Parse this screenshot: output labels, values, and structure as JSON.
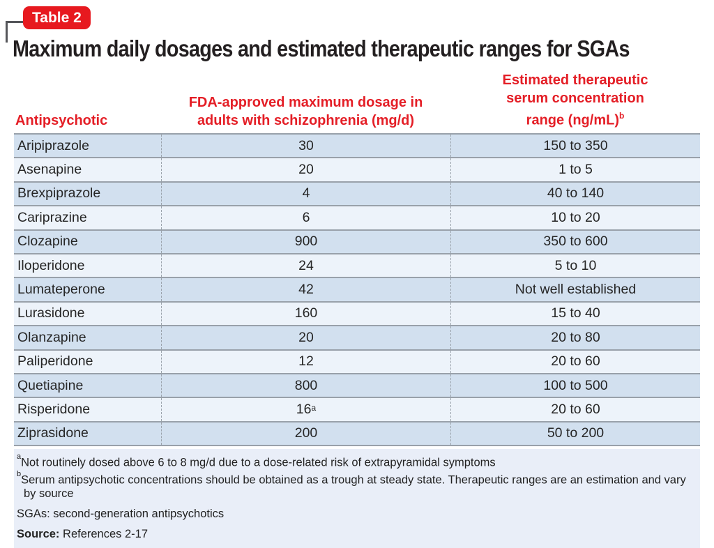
{
  "badge": {
    "label": "Table 2"
  },
  "title": "Maximum daily dosages and estimated therapeutic ranges for SGAs",
  "table": {
    "columns": [
      {
        "label": "Antipsychotic"
      },
      {
        "line1": "FDA-approved maximum dosage in",
        "line2": "adults with schizophrenia (mg/d)"
      },
      {
        "line1": "Estimated therapeutic",
        "line2": "serum concentration",
        "line3": "range (ng/mL)",
        "sup": "b"
      }
    ],
    "rows": [
      {
        "drug": "Aripiprazole",
        "max_dosage": "30",
        "serum_range": "150 to 350"
      },
      {
        "drug": "Asenapine",
        "max_dosage": "20",
        "serum_range": "1 to 5"
      },
      {
        "drug": "Brexpiprazole",
        "max_dosage": "4",
        "serum_range": "40 to 140"
      },
      {
        "drug": "Cariprazine",
        "max_dosage": "6",
        "serum_range": "10 to 20"
      },
      {
        "drug": "Clozapine",
        "max_dosage": "900",
        "serum_range": "350 to 600"
      },
      {
        "drug": "Iloperidone",
        "max_dosage": "24",
        "serum_range": "5 to 10"
      },
      {
        "drug": "Lumateperone",
        "max_dosage": "42",
        "serum_range": "Not well established"
      },
      {
        "drug": "Lurasidone",
        "max_dosage": "160",
        "serum_range": "15 to 40"
      },
      {
        "drug": "Olanzapine",
        "max_dosage": "20",
        "serum_range": "20 to 80"
      },
      {
        "drug": "Paliperidone",
        "max_dosage": "12",
        "serum_range": "20 to 60"
      },
      {
        "drug": "Quetiapine",
        "max_dosage": "800",
        "serum_range": "100 to 500"
      },
      {
        "drug": "Risperidone",
        "max_dosage": "16",
        "max_dosage_sup": "a",
        "serum_range": "20 to 60"
      },
      {
        "drug": "Ziprasidone",
        "max_dosage": "200",
        "serum_range": "50 to 200"
      }
    ]
  },
  "footnotes": [
    {
      "marker": "a",
      "text": "Not routinely dosed above 6 to 8 mg/d due to a dose-related risk of extrapyramidal symptoms"
    },
    {
      "marker": "b",
      "text": "Serum antipsychotic concentrations should be obtained as a trough at steady state. Therapeutic ranges are an estimation and vary by source"
    }
  ],
  "abbreviations": "SGAs: second-generation antipsychotics",
  "source": {
    "label": "Source:",
    "text": "References 2-17"
  },
  "colors": {
    "accent_red": "#e7191f",
    "header_red": "#e41e26",
    "row_dark": "#d2e0ef",
    "row_light": "#edf3fa",
    "footer_bg": "#e9eef8",
    "rule_gray": "#99a1aa",
    "title_text": "#231f20"
  }
}
